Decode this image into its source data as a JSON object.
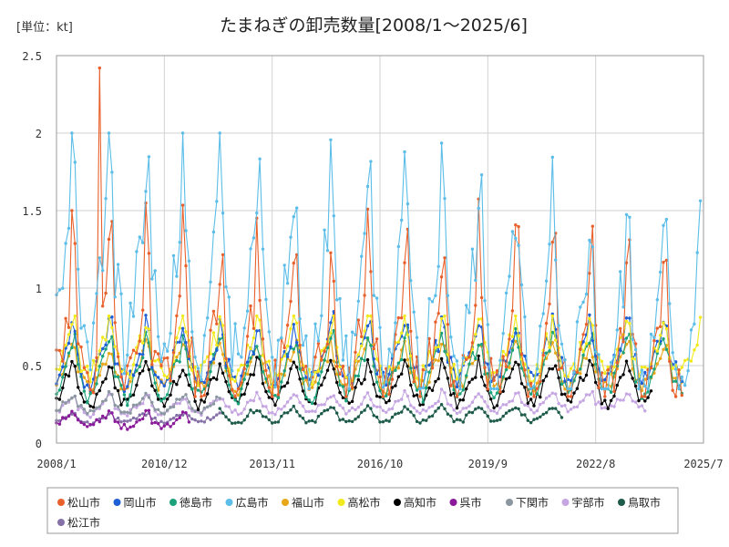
{
  "unit_label": "[単位：kt]",
  "chart_data": {
    "type": "line",
    "title": "たまねぎの卸売数量[2008/1～2025/6]",
    "xlabel": "",
    "ylabel": "",
    "xlim": [
      "2008/1",
      "2025/7"
    ],
    "ylim": [
      0,
      2.5
    ],
    "x_ticks": [
      "2008/1",
      "2010/12",
      "2013/11",
      "2016/10",
      "2019/9",
      "2022/8",
      "2025/7"
    ],
    "y_ticks": [
      "0",
      "0.5",
      "1",
      "1.5",
      "2",
      "2.5"
    ],
    "grid": {
      "horizontal": true,
      "vertical": true
    },
    "legend": "bottom",
    "series": [
      {
        "name": "松山市",
        "color": "#e8612c",
        "range": [
          "2008/1",
          "2024/12"
        ],
        "base": 0.62,
        "amp": 0.22,
        "peak": 0.55,
        "noise": 0.16,
        "trend": -0.08,
        "min": 0.3,
        "max": 2.45,
        "annotated_peak": {
          "x": "2009/3",
          "y": 2.42
        }
      },
      {
        "name": "岡山市",
        "color": "#1f5fd6",
        "range": [
          "2008/1",
          "2024/12"
        ],
        "base": 0.5,
        "amp": 0.12,
        "peak": 0.15,
        "noise": 0.06,
        "trend": 0.05,
        "min": 0.25,
        "max": 0.85
      },
      {
        "name": "徳島市",
        "color": "#1aa37a",
        "range": [
          "2008/1",
          "2024/12"
        ],
        "base": 0.42,
        "amp": 0.14,
        "peak": 0.12,
        "noise": 0.05,
        "trend": 0.05,
        "min": 0.2,
        "max": 0.8
      },
      {
        "name": "広島市",
        "color": "#5bbde8",
        "range": [
          "2008/1",
          "2025/6"
        ],
        "base": 1.08,
        "amp": 0.4,
        "peak": 0.6,
        "noise": 0.22,
        "trend": -0.45,
        "min": 0.35,
        "max": 2.0
      },
      {
        "name": "福山市",
        "color": "#e8a81a",
        "range": [
          "2008/1",
          "2024/12"
        ],
        "base": 0.45,
        "amp": 0.1,
        "peak": 0.1,
        "noise": 0.05,
        "trend": 0.02,
        "min": 0.22,
        "max": 0.7
      },
      {
        "name": "高松市",
        "color": "#f2ea1c",
        "range": [
          "2008/1",
          "2025/6"
        ],
        "base": 0.56,
        "amp": 0.13,
        "peak": 0.14,
        "noise": 0.07,
        "trend": 0.0,
        "min": 0.3,
        "max": 0.82
      },
      {
        "name": "高知市",
        "color": "#000000",
        "range": [
          "2008/1",
          "2024/2"
        ],
        "base": 0.34,
        "amp": 0.1,
        "peak": 0.08,
        "noise": 0.04,
        "trend": 0.02,
        "min": 0.15,
        "max": 0.6
      },
      {
        "name": "呉市",
        "color": "#8a1a9a",
        "range": [
          "2008/1",
          "2011/8"
        ],
        "base": 0.15,
        "amp": 0.04,
        "peak": 0.03,
        "noise": 0.02,
        "trend": -0.02,
        "min": 0.0,
        "max": 0.26
      },
      {
        "name": "下関市",
        "color": "#8a96a0",
        "range": [
          "2008/1",
          "2012/6"
        ],
        "base": 0.24,
        "amp": 0.04,
        "peak": 0.03,
        "noise": 0.02,
        "trend": 0.0,
        "min": 0.15,
        "max": 0.34
      },
      {
        "name": "宇部市",
        "color": "#c6a6e2",
        "range": [
          "2008/1",
          "2023/12"
        ],
        "base": 0.22,
        "amp": 0.04,
        "peak": 0.04,
        "noise": 0.02,
        "trend": 0.04,
        "min": 0.12,
        "max": 0.38
      },
      {
        "name": "鳥取市",
        "color": "#1d5a4a",
        "range": [
          "2012/6",
          "2021/9"
        ],
        "base": 0.17,
        "amp": 0.04,
        "peak": 0.02,
        "noise": 0.015,
        "trend": 0.01,
        "min": 0.1,
        "max": 0.25
      },
      {
        "name": "松江市",
        "color": "#8570a8",
        "range": [
          "2008/1",
          "2012/6"
        ],
        "base": 0.15,
        "amp": 0.025,
        "peak": 0.02,
        "noise": 0.015,
        "trend": 0.01,
        "min": 0.08,
        "max": 0.22
      }
    ]
  }
}
